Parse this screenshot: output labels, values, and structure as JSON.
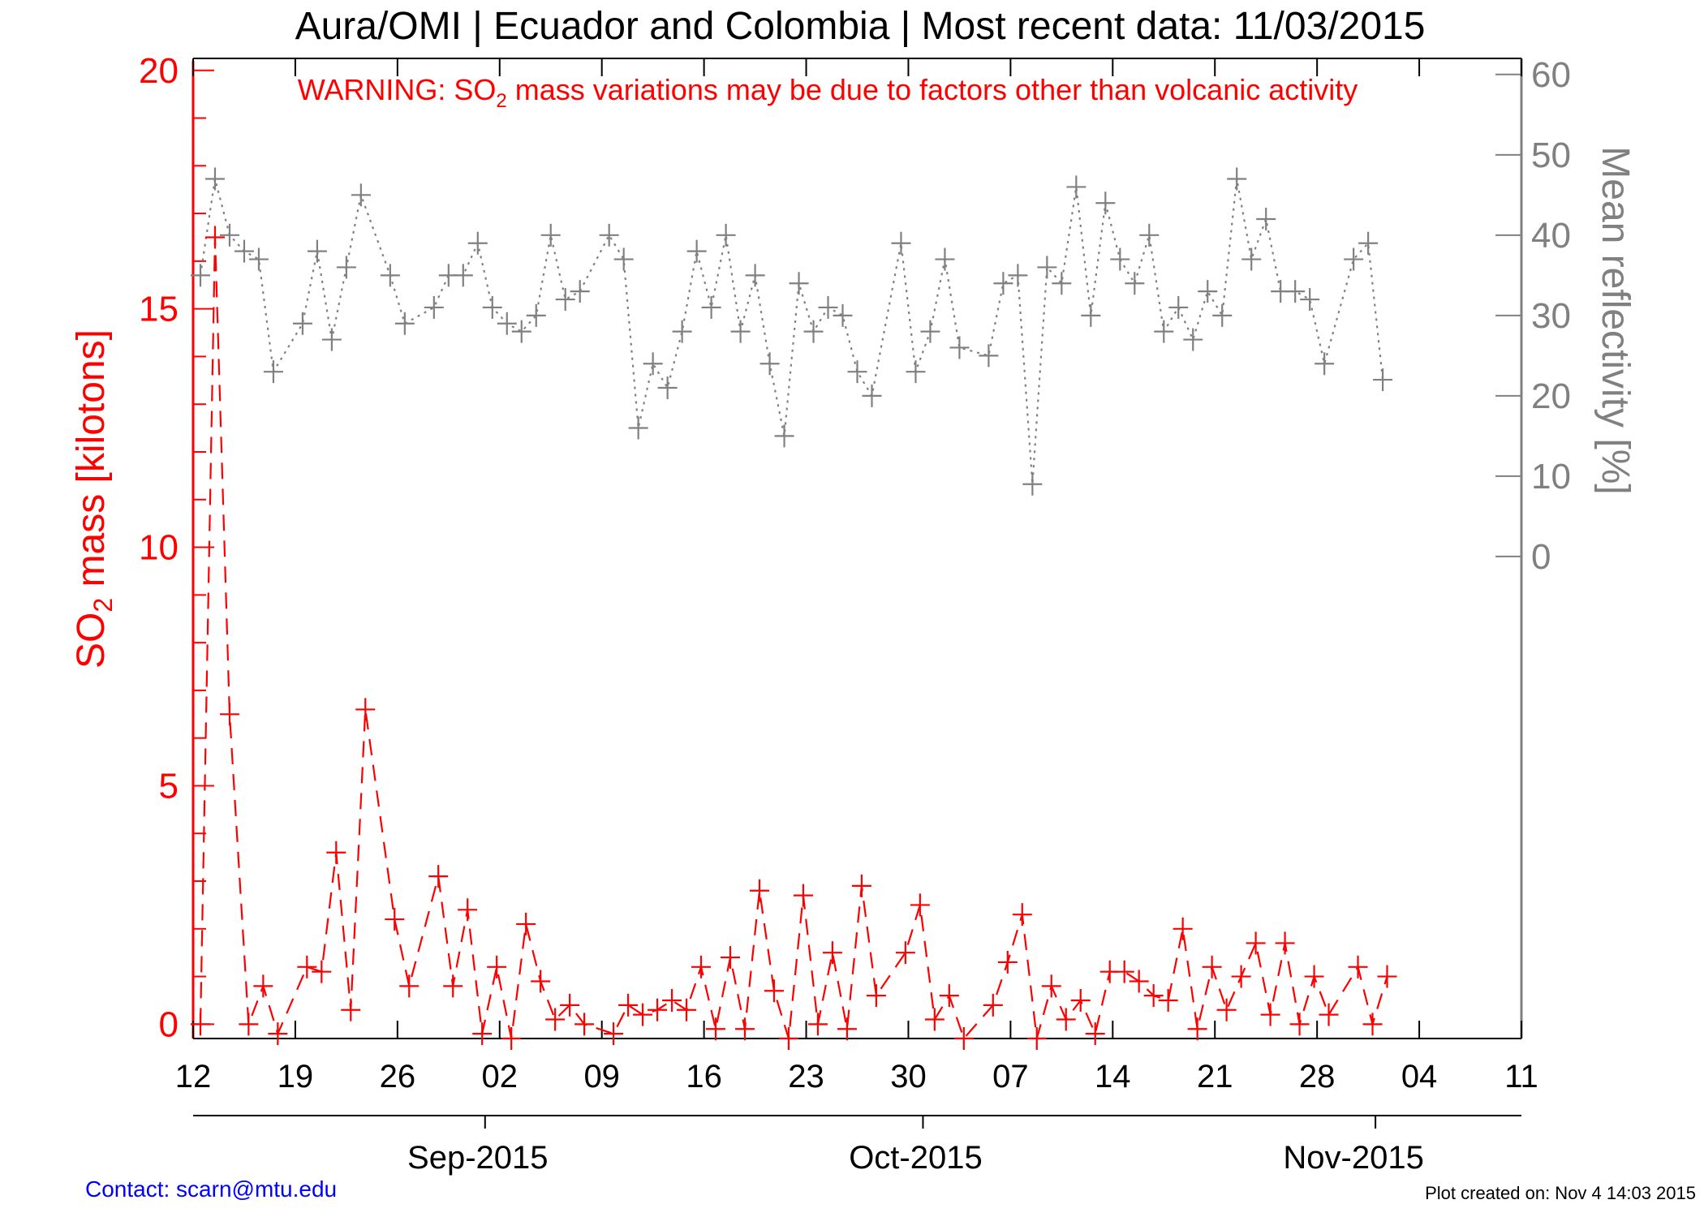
{
  "header": {
    "title": "Aura/OMI | Ecuador and Colombia | Most recent data: 11/03/2015"
  },
  "warning": {
    "prefix": "WARNING: SO",
    "subscript": "2",
    "suffix": " mass variations may be due to factors other than volcanic activity"
  },
  "footer": {
    "contact": "Contact: scarn@mtu.edu",
    "created": "Plot created on: Nov  4 14:03 2015"
  },
  "colors": {
    "so2": "#ff0000",
    "reflectivity": "#808080",
    "axis": "#000000"
  },
  "chart_data": {
    "type": "line",
    "title": "Aura/OMI | Ecuador and Colombia | Most recent data: 11/03/2015",
    "x_axis": {
      "range_days": [
        0,
        91
      ],
      "ticks": [
        {
          "day": 0,
          "label": "12"
        },
        {
          "day": 7,
          "label": "19"
        },
        {
          "day": 14,
          "label": "26"
        },
        {
          "day": 21,
          "label": "02"
        },
        {
          "day": 28,
          "label": "09"
        },
        {
          "day": 35,
          "label": "16"
        },
        {
          "day": 42,
          "label": "23"
        },
        {
          "day": 49,
          "label": "30"
        },
        {
          "day": 56,
          "label": "07"
        },
        {
          "day": 63,
          "label": "14"
        },
        {
          "day": 70,
          "label": "21"
        },
        {
          "day": 77,
          "label": "28"
        },
        {
          "day": 84,
          "label": "04"
        },
        {
          "day": 91,
          "label": "11"
        }
      ],
      "months": [
        {
          "label": "Sep-2015",
          "start_day": 20,
          "label_day": 19.5
        },
        {
          "label": "Oct-2015",
          "start_day": 50,
          "label_day": 49.5
        },
        {
          "label": "Nov-2015",
          "start_day": 81,
          "label_day": 79.5
        }
      ]
    },
    "y_left": {
      "label_prefix": "SO",
      "label_subscript": "2",
      "label_suffix": " mass [kilotons]",
      "range": [
        -0.3,
        20.2
      ],
      "ticks": [
        0,
        5,
        10,
        15,
        20
      ],
      "tick_labels": [
        "0",
        "5",
        "10",
        "15",
        "20"
      ]
    },
    "y_right": {
      "label": "Mean reflectivity [%]",
      "range": [
        -60,
        62
      ],
      "ticks": [
        0,
        10,
        20,
        30,
        40,
        50,
        60
      ],
      "tick_labels": [
        "0",
        "10",
        "20",
        "30",
        "40",
        "50",
        "60"
      ]
    },
    "series": [
      {
        "name": "SO2 mass",
        "axis": "left",
        "style": "dashed",
        "points": [
          [
            0.5,
            0.0
          ],
          [
            1.5,
            16.5
          ],
          [
            2.5,
            6.5
          ],
          [
            3.8,
            0.0
          ],
          [
            4.8,
            0.8
          ],
          [
            5.8,
            -0.2
          ],
          [
            7.8,
            1.2
          ],
          [
            8.8,
            1.1
          ],
          [
            9.8,
            3.6
          ],
          [
            10.8,
            0.3
          ],
          [
            11.8,
            6.6
          ],
          [
            13.8,
            2.2
          ],
          [
            14.8,
            0.8
          ],
          [
            16.8,
            3.1
          ],
          [
            17.8,
            0.8
          ],
          [
            18.8,
            2.4
          ],
          [
            19.8,
            -0.2
          ],
          [
            20.8,
            1.2
          ],
          [
            21.8,
            -0.3
          ],
          [
            22.8,
            2.1
          ],
          [
            23.8,
            0.9
          ],
          [
            24.8,
            0.1
          ],
          [
            25.8,
            0.4
          ],
          [
            26.8,
            0.0
          ],
          [
            28.8,
            -0.2
          ],
          [
            29.8,
            0.4
          ],
          [
            30.8,
            0.2
          ],
          [
            31.8,
            0.3
          ],
          [
            32.8,
            0.5
          ],
          [
            33.8,
            0.3
          ],
          [
            34.8,
            1.2
          ],
          [
            35.8,
            -0.1
          ],
          [
            36.8,
            1.4
          ],
          [
            37.8,
            -0.1
          ],
          [
            38.8,
            2.8
          ],
          [
            39.8,
            0.7
          ],
          [
            40.8,
            -0.3
          ],
          [
            41.8,
            2.7
          ],
          [
            42.8,
            0.0
          ],
          [
            43.8,
            1.5
          ],
          [
            44.8,
            -0.1
          ],
          [
            45.8,
            2.9
          ],
          [
            46.8,
            0.6
          ],
          [
            48.8,
            1.5
          ],
          [
            49.8,
            2.5
          ],
          [
            50.8,
            0.1
          ],
          [
            51.8,
            0.6
          ],
          [
            52.8,
            -0.3
          ],
          [
            54.8,
            0.4
          ],
          [
            55.8,
            1.3
          ],
          [
            56.8,
            2.3
          ],
          [
            57.8,
            -0.3
          ],
          [
            58.8,
            0.8
          ],
          [
            59.8,
            0.1
          ],
          [
            60.8,
            0.5
          ],
          [
            61.8,
            -0.2
          ],
          [
            62.8,
            1.1
          ],
          [
            63.8,
            1.1
          ],
          [
            64.8,
            0.9
          ],
          [
            65.8,
            0.6
          ],
          [
            66.8,
            0.5
          ],
          [
            67.8,
            2.0
          ],
          [
            68.8,
            -0.1
          ],
          [
            69.8,
            1.2
          ],
          [
            70.8,
            0.3
          ],
          [
            71.8,
            1.0
          ],
          [
            72.8,
            1.7
          ],
          [
            73.8,
            0.2
          ],
          [
            74.8,
            1.7
          ],
          [
            75.8,
            0.0
          ],
          [
            76.8,
            1.0
          ],
          [
            77.8,
            0.2
          ],
          [
            79.8,
            1.2
          ],
          [
            80.8,
            0.0
          ],
          [
            81.8,
            1.0
          ]
        ]
      },
      {
        "name": "Mean reflectivity",
        "axis": "right",
        "style": "dotted",
        "points": [
          [
            0.5,
            35
          ],
          [
            1.5,
            47
          ],
          [
            2.5,
            40
          ],
          [
            3.5,
            38
          ],
          [
            4.5,
            37
          ],
          [
            5.5,
            23
          ],
          [
            7.5,
            29
          ],
          [
            8.5,
            38
          ],
          [
            9.5,
            27
          ],
          [
            10.5,
            36
          ],
          [
            11.5,
            45
          ],
          [
            13.5,
            35
          ],
          [
            14.5,
            29
          ],
          [
            16.5,
            31
          ],
          [
            17.5,
            35
          ],
          [
            18.5,
            35
          ],
          [
            19.5,
            39
          ],
          [
            20.5,
            31
          ],
          [
            21.5,
            29
          ],
          [
            22.5,
            28
          ],
          [
            23.5,
            30
          ],
          [
            24.5,
            40
          ],
          [
            25.5,
            32
          ],
          [
            26.5,
            33
          ],
          [
            28.5,
            40
          ],
          [
            29.5,
            37
          ],
          [
            30.5,
            16
          ],
          [
            31.5,
            24
          ],
          [
            32.5,
            21
          ],
          [
            33.5,
            28
          ],
          [
            34.5,
            38
          ],
          [
            35.5,
            31
          ],
          [
            36.5,
            40
          ],
          [
            37.5,
            28
          ],
          [
            38.5,
            35
          ],
          [
            39.5,
            24
          ],
          [
            40.5,
            15
          ],
          [
            41.5,
            34
          ],
          [
            42.5,
            28
          ],
          [
            43.5,
            31
          ],
          [
            44.5,
            30
          ],
          [
            45.5,
            23
          ],
          [
            46.5,
            20
          ],
          [
            48.5,
            39
          ],
          [
            49.5,
            23
          ],
          [
            50.5,
            28
          ],
          [
            51.5,
            37
          ],
          [
            52.5,
            26
          ],
          [
            54.5,
            25
          ],
          [
            55.5,
            34
          ],
          [
            56.5,
            35
          ],
          [
            57.5,
            9
          ],
          [
            58.5,
            36
          ],
          [
            59.5,
            34
          ],
          [
            60.5,
            46
          ],
          [
            61.5,
            30
          ],
          [
            62.5,
            44
          ],
          [
            63.5,
            37
          ],
          [
            64.5,
            34
          ],
          [
            65.5,
            40
          ],
          [
            66.5,
            28
          ],
          [
            67.5,
            31
          ],
          [
            68.5,
            27
          ],
          [
            69.5,
            33
          ],
          [
            70.5,
            30
          ],
          [
            71.5,
            47
          ],
          [
            72.5,
            37
          ],
          [
            73.5,
            42
          ],
          [
            74.5,
            33
          ],
          [
            75.5,
            33
          ],
          [
            76.5,
            32
          ],
          [
            77.5,
            24
          ],
          [
            79.5,
            37
          ],
          [
            80.5,
            39
          ],
          [
            81.5,
            22
          ]
        ]
      }
    ]
  }
}
